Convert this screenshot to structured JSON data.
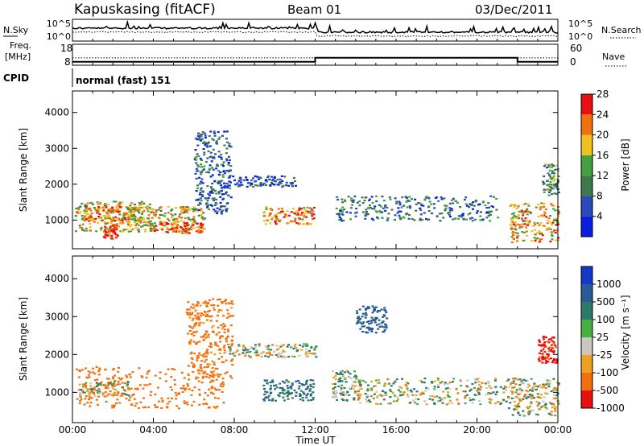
{
  "header": {
    "station": "Kapuskasing (fitACF)",
    "beam": "Beam 01",
    "date": "03/Dec/2011"
  },
  "noise_panel": {
    "left_label": "N.Sky",
    "left_ticks": [
      "10^5",
      "10^0"
    ],
    "right_label": "N.Search",
    "right_ticks": [
      "10^5",
      "10^0"
    ]
  },
  "freq_panel": {
    "left_label_1": "Freq.",
    "left_label_2": "[MHz]",
    "left_ticks": [
      "18",
      "8"
    ],
    "right_label": "Nave",
    "right_ticks": [
      "60",
      "0"
    ],
    "freq_steps": [
      {
        "t_start": 0,
        "t_end": 12,
        "mhz": 10.5
      },
      {
        "t_start": 12,
        "t_end": 22,
        "mhz": 13.5
      },
      {
        "t_start": 22,
        "t_end": 24,
        "mhz": 10.5
      }
    ],
    "nave_level": 32
  },
  "cpid": {
    "label": "CPID",
    "value": "normal (fast) 151"
  },
  "xaxis": {
    "ticks": [
      "00:00",
      "04:00",
      "08:00",
      "12:00",
      "16:00",
      "20:00",
      "00:00"
    ],
    "tick_hours": [
      0,
      4,
      8,
      12,
      16,
      20,
      24
    ],
    "label": "Time UT"
  },
  "chart_data": [
    {
      "type": "heatmap",
      "parameter": "power",
      "ylabel": "Slant Range [km]",
      "ylim": [
        200,
        4600
      ],
      "xlim": [
        0,
        24
      ],
      "yticks": [
        "1000",
        "2000",
        "3000",
        "4000"
      ],
      "ytick_values": [
        1000,
        2000,
        3000,
        4000
      ],
      "colorbar": {
        "label": "Power [dB]",
        "ticks": [
          "4",
          "8",
          "12",
          "16",
          "20",
          "24",
          "28"
        ],
        "colors": [
          "#0a1ee0",
          "#2a4ab8",
          "#3c7a4a",
          "#46a040",
          "#f0c020",
          "#f07010",
          "#e81010"
        ]
      },
      "regions": [
        {
          "t0": 0.1,
          "t1": 4.0,
          "r0": 700,
          "r1": 1550,
          "lvl": 0.6
        },
        {
          "t0": 0.5,
          "t1": 3.0,
          "r0": 1000,
          "r1": 1400,
          "lvl": 0.8
        },
        {
          "t0": 1.5,
          "t1": 2.2,
          "r0": 500,
          "r1": 900,
          "lvl": 0.9
        },
        {
          "t0": 2.5,
          "t1": 6.5,
          "r0": 700,
          "r1": 1400,
          "lvl": 0.6
        },
        {
          "t0": 4.0,
          "t1": 6.4,
          "r0": 650,
          "r1": 950,
          "lvl": 0.85
        },
        {
          "t0": 6.0,
          "t1": 7.8,
          "r0": 1200,
          "r1": 3500,
          "lvl": 0.25
        },
        {
          "t0": 7.5,
          "t1": 11.0,
          "r0": 1950,
          "r1": 2250,
          "lvl": 0.2
        },
        {
          "t0": 9.4,
          "t1": 11.9,
          "r0": 900,
          "r1": 1400,
          "lvl": 0.75
        },
        {
          "t0": 13.0,
          "t1": 21.0,
          "r0": 1000,
          "r1": 1700,
          "lvl": 0.3
        },
        {
          "t0": 21.6,
          "t1": 24.0,
          "r0": 400,
          "r1": 1500,
          "lvl": 0.7
        },
        {
          "t0": 23.2,
          "t1": 24.0,
          "r0": 1700,
          "r1": 2600,
          "lvl": 0.4
        }
      ]
    },
    {
      "type": "heatmap",
      "parameter": "velocity",
      "ylabel": "Slant Range [km]",
      "ylim": [
        200,
        4600
      ],
      "xlim": [
        0,
        24
      ],
      "yticks": [
        "1000",
        "2000",
        "3000",
        "4000"
      ],
      "ytick_values": [
        1000,
        2000,
        3000,
        4000
      ],
      "colorbar": {
        "label": "Velocity [m s⁻¹]",
        "ticks": [
          "1000",
          "500",
          "100",
          "25",
          "-25",
          "-100",
          "-500",
          "-1000"
        ],
        "colors": [
          "#1438c8",
          "#2a5a9a",
          "#2e7a6a",
          "#48b040",
          "#c8c8c0",
          "#f0a020",
          "#f07010",
          "#e81010"
        ]
      },
      "regions": [
        {
          "t0": 0.1,
          "t1": 7.5,
          "r0": 600,
          "r1": 1700,
          "v": -300
        },
        {
          "t0": 0.3,
          "t1": 2.8,
          "r0": 900,
          "r1": 1300,
          "v": 0
        },
        {
          "t0": 5.6,
          "t1": 7.9,
          "r0": 1400,
          "r1": 3500,
          "v": -200
        },
        {
          "t0": 7.5,
          "t1": 12.0,
          "r0": 1950,
          "r1": 2300,
          "v": 0
        },
        {
          "t0": 9.4,
          "t1": 11.9,
          "r0": 800,
          "r1": 1350,
          "v": 250
        },
        {
          "t0": 12.8,
          "t1": 14.0,
          "r0": 800,
          "r1": 1600,
          "v": 80
        },
        {
          "t0": 14.0,
          "t1": 21.5,
          "r0": 700,
          "r1": 1400,
          "v": 0
        },
        {
          "t0": 21.5,
          "t1": 24.0,
          "r0": 400,
          "r1": 1400,
          "v": 0
        },
        {
          "t0": 23.0,
          "t1": 24.0,
          "r0": 1800,
          "r1": 2500,
          "v": -600
        },
        {
          "t0": 14.0,
          "t1": 15.5,
          "r0": 2600,
          "r1": 3300,
          "v": 400
        }
      ]
    }
  ]
}
